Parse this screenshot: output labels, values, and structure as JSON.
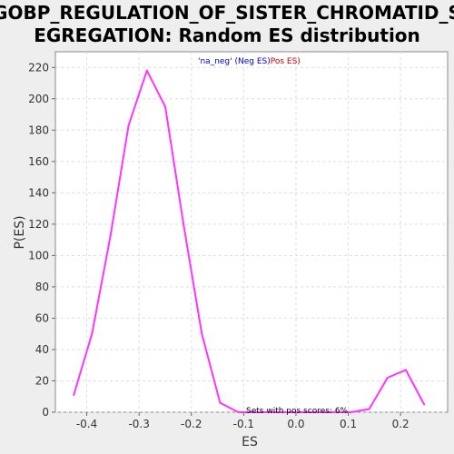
{
  "chart_data": {
    "type": "line",
    "title_line1": "GOBP_REGULATION_OF_SISTER_CHROMATID_S",
    "title_line2": "EGREGATION: Random ES distribution",
    "xlabel": "ES",
    "ylabel": "P(ES)",
    "xlim": [
      -0.46,
      0.29
    ],
    "ylim": [
      0,
      230
    ],
    "x_ticks": [
      -0.4,
      -0.3,
      -0.2,
      -0.1,
      0.0,
      0.1,
      0.2
    ],
    "x_tick_labels": [
      "-0.4",
      "-0.3",
      "-0.2",
      "-0.1",
      "0.0",
      "0.1",
      "0.2"
    ],
    "y_ticks": [
      0,
      20,
      40,
      60,
      80,
      100,
      120,
      140,
      160,
      180,
      200,
      220
    ],
    "y_tick_labels": [
      "0",
      "20",
      "40",
      "60",
      "80",
      "100",
      "120",
      "140",
      "160",
      "180",
      "200",
      "220"
    ],
    "grid": true,
    "legend_neg": "'na_neg' (Neg ES)",
    "legend_pos": "'na_pos' (Pos ES)",
    "annotation": "Sets with pos scores: 6%",
    "series": [
      {
        "color": "#ff33ff",
        "x": [
          -0.425,
          -0.39,
          -0.355,
          -0.32,
          -0.285,
          -0.25,
          -0.215,
          -0.18,
          -0.145,
          -0.11,
          -0.075,
          -0.04,
          0.0,
          0.035,
          0.07,
          0.105,
          0.14,
          0.175,
          0.21,
          0.245
        ],
        "y": [
          11,
          50,
          112,
          183,
          218,
          195,
          120,
          50,
          6,
          0,
          0,
          0,
          0,
          0,
          0,
          0,
          2,
          22,
          27,
          5
        ]
      }
    ]
  }
}
